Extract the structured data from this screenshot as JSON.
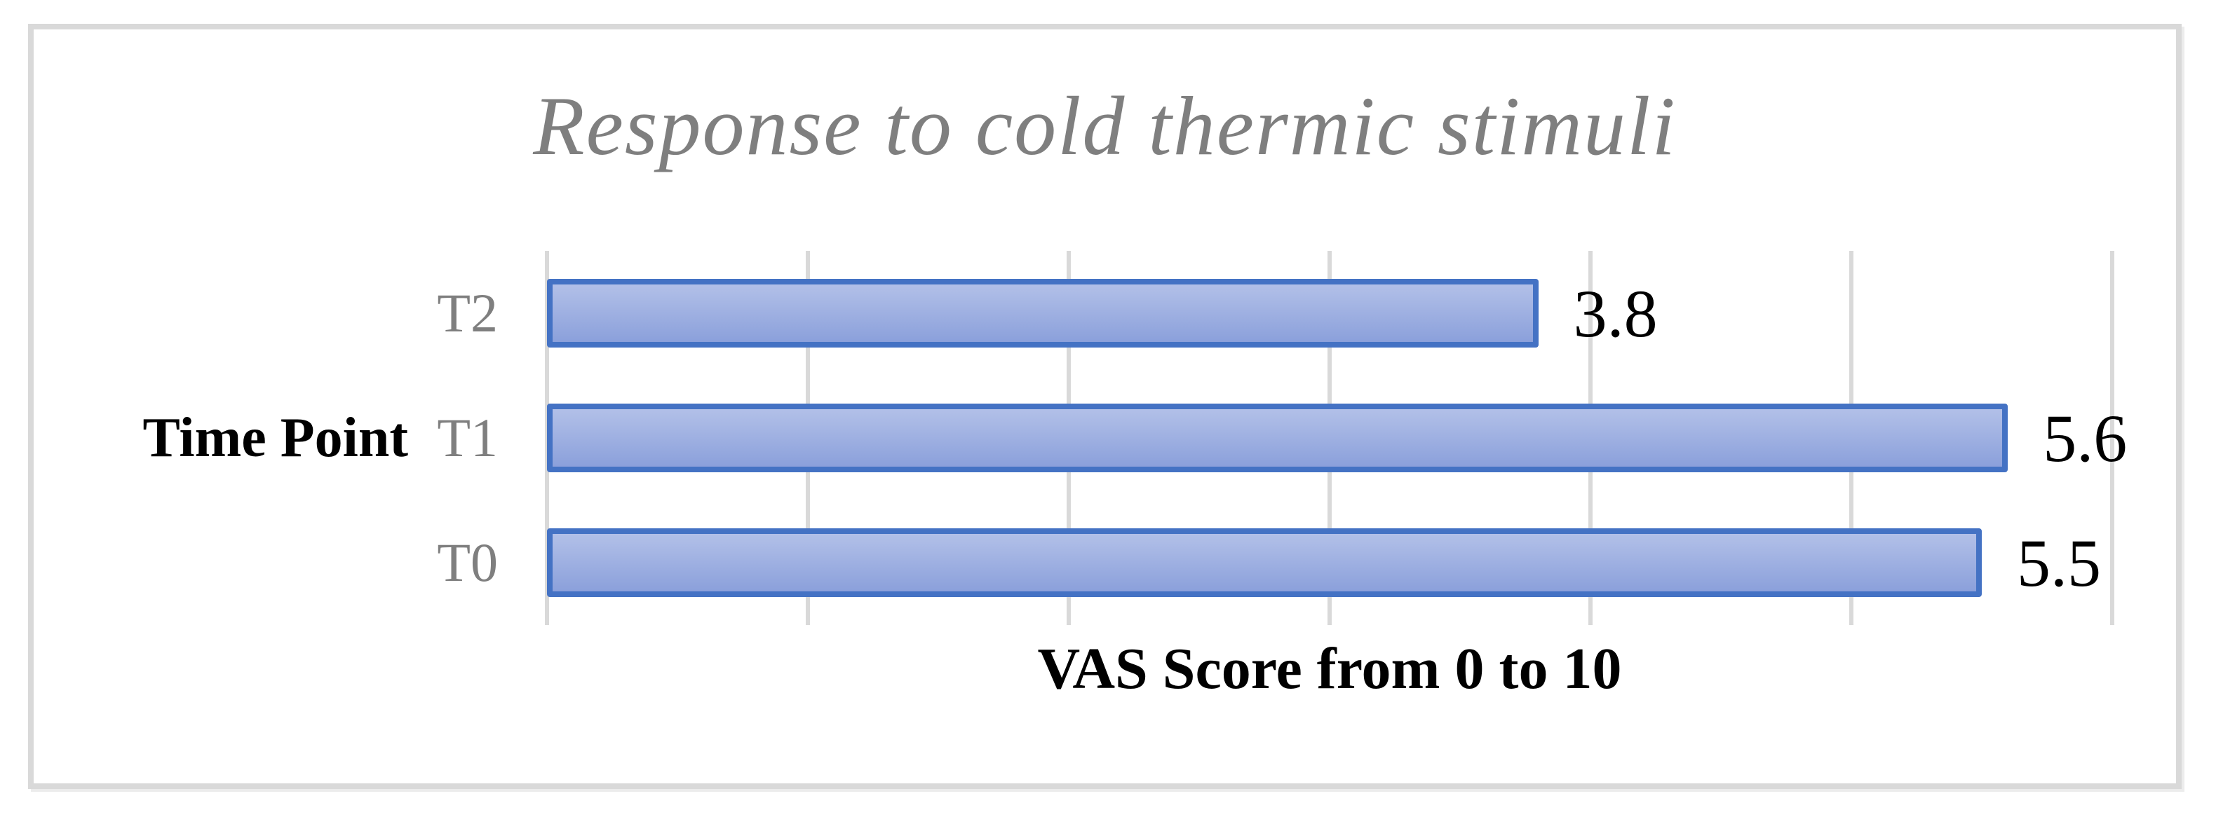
{
  "chart_data": {
    "type": "bar",
    "orientation": "horizontal",
    "title": "Response to cold thermic stimuli",
    "categories": [
      "T2",
      "T1",
      "T0"
    ],
    "values": [
      3.8,
      5.6,
      5.5
    ],
    "value_labels": [
      "3.8",
      "5.6",
      "5.5"
    ],
    "xlabel": "VAS Score from 0 to 10",
    "ylabel": "Time Point",
    "xlim": [
      0,
      6
    ],
    "grid_interval": 1,
    "grid": true,
    "legend": false,
    "tick_labels_visible": false
  },
  "colors": {
    "bar_border": "#4472c4",
    "bar_fill_top": "#b2c0e8",
    "bar_fill_bottom": "#8ba0db",
    "gridline": "#d9d9d9",
    "frame_border": "#d9d9d9",
    "title_color": "#7f7f7f",
    "category_color": "#7f7f7f",
    "text_color": "#000000",
    "background": "#ffffff"
  }
}
